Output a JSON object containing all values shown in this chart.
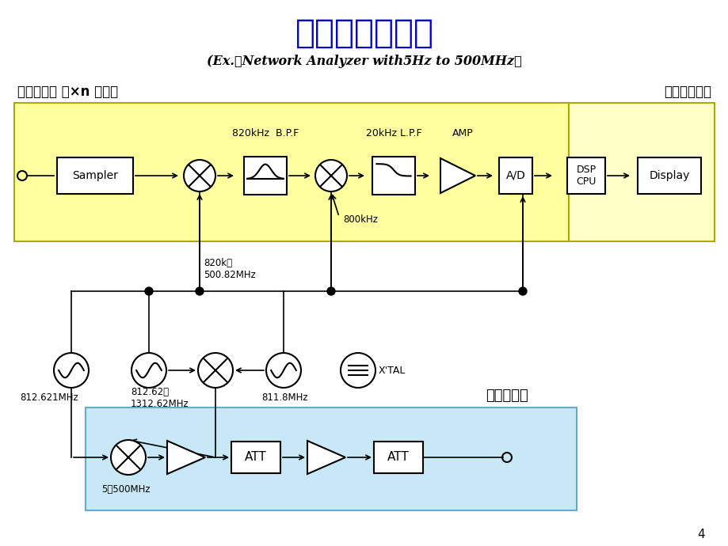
{
  "title_cn": "网络分析仪原理",
  "title_en": "(Ex.：Network Analyzer with5Hz to 500MHz）",
  "title_cn_color": "#0000CC",
  "title_en_color": "#000000",
  "input_block_label": "输入功能块 （×n 通道）",
  "processor_block_label": "处理器功能块",
  "output_block_label": "输出功能块",
  "page_number": "4",
  "bg_color": "#FFFFFF",
  "yellow_bg": "#FFFFA0",
  "blue_bg": "#C8E8F8",
  "yellow_bg2": "#FFFFC8"
}
